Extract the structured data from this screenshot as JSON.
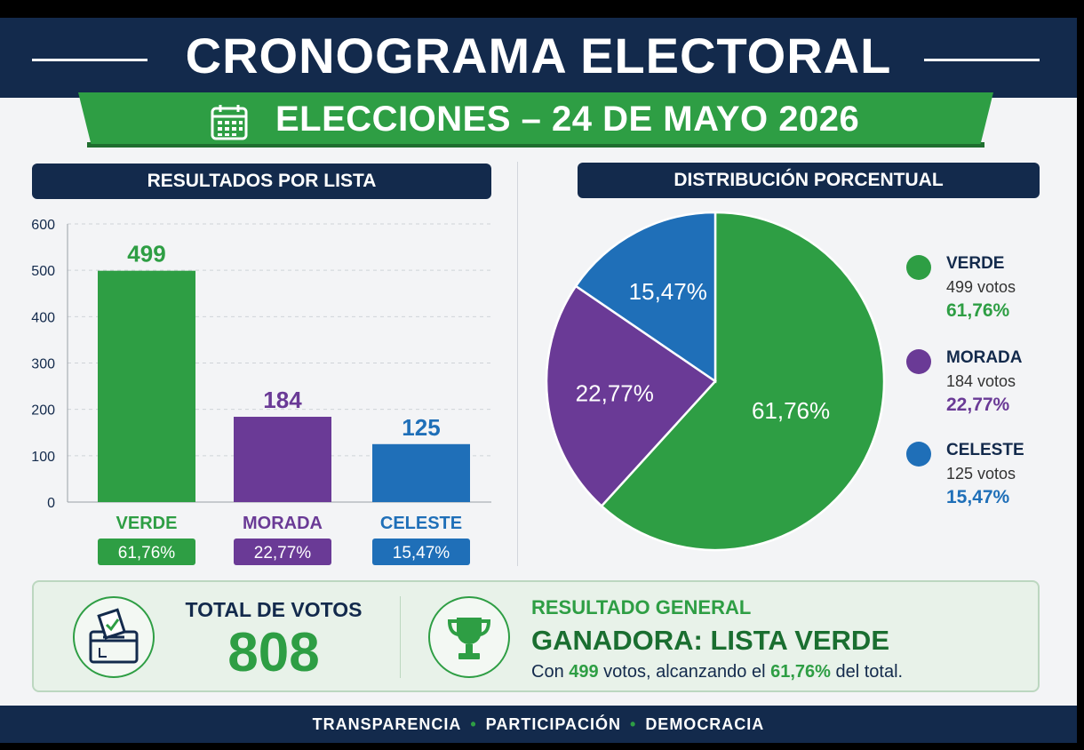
{
  "header": {
    "title": "CRONOGRAMA ELECTORAL",
    "subtitle": "ELECCIONES – 24 DE MAYO 2026"
  },
  "sections": {
    "bar_title": "RESULTADOS POR LISTA",
    "pie_title": "DISTRIBUCIÓN PORCENTUAL"
  },
  "colors": {
    "verde": "#2e9e44",
    "morada": "#6a3a96",
    "celeste": "#1f6fb8",
    "navy": "#132a4c"
  },
  "chart_data": [
    {
      "type": "bar",
      "title": "RESULTADOS POR LISTA",
      "categories": [
        "VERDE",
        "MORADA",
        "CELESTE"
      ],
      "values": [
        499,
        184,
        125
      ],
      "data_labels": [
        "499",
        "184",
        "125"
      ],
      "percent_labels": [
        "61,76%",
        "22,77%",
        "15,47%"
      ],
      "ylim": [
        0,
        600
      ],
      "yticks": [
        0,
        100,
        200,
        300,
        400,
        500,
        600
      ],
      "grid": true
    },
    {
      "type": "pie",
      "title": "DISTRIBUCIÓN PORCENTUAL",
      "labels": [
        "VERDE",
        "MORADA",
        "CELESTE"
      ],
      "values": [
        61.76,
        22.77,
        15.47
      ],
      "slice_labels": [
        "61,76%",
        "22,77%",
        "15,47%"
      ],
      "legend": {
        "position": "right",
        "entries": [
          {
            "name": "VERDE",
            "votes": "499 votos",
            "pct": "61,76%"
          },
          {
            "name": "MORADA",
            "votes": "184 votos",
            "pct": "22,77%"
          },
          {
            "name": "CELESTE",
            "votes": "125 votos",
            "pct": "15,47%"
          }
        ]
      }
    }
  ],
  "summary": {
    "total_label": "TOTAL DE VOTOS",
    "total_value": "808",
    "result_label": "RESULTADO GENERAL",
    "winner": "GANADORA: LISTA VERDE",
    "detail_pre": "Con ",
    "detail_votes": "499",
    "detail_mid": " votos, alcanzando el ",
    "detail_pct": "61,76%",
    "detail_post": " del total.",
    "ballot_icon": "ballot-box-icon",
    "trophy_icon": "trophy-icon"
  },
  "footer": {
    "items": [
      "TRANSPARENCIA",
      "PARTICIPACIÓN",
      "DEMOCRACIA"
    ],
    "separator": "•"
  },
  "icons": {
    "calendar": "calendar-icon"
  }
}
